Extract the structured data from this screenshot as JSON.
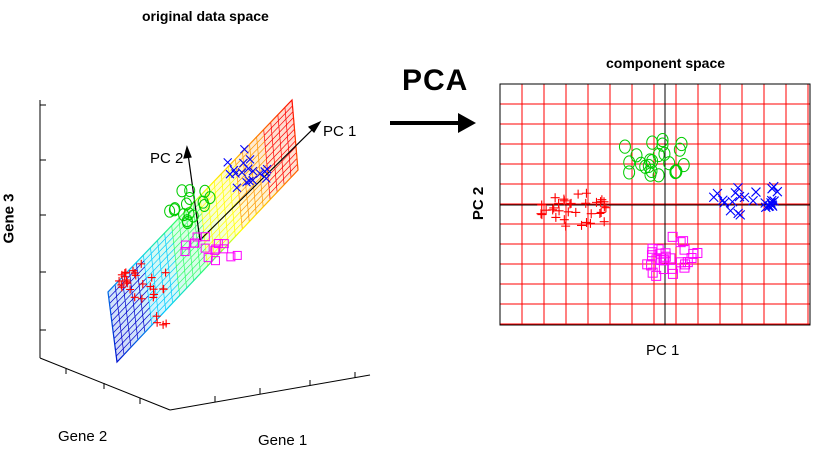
{
  "left_panel": {
    "title": "original data space",
    "x_axis_label": "Gene 1",
    "y_axis_label": "Gene 2",
    "z_axis_label": "Gene 3",
    "pc1_label": "PC 1",
    "pc2_label": "PC 2"
  },
  "transform_label": "PCA",
  "right_panel": {
    "title": "component space",
    "x_axis_label": "PC 1",
    "y_axis_label": "PC 2"
  },
  "clusters": [
    {
      "marker": "plus",
      "color": "#ff0000"
    },
    {
      "marker": "circle",
      "color": "#00cc00"
    },
    {
      "marker": "square",
      "color": "#ff00ff"
    },
    {
      "marker": "cross",
      "color": "#0000ff"
    }
  ],
  "colors": {
    "grid_right": "#ff0000",
    "axes": "#000000",
    "plane_gradient": [
      "#0000cc",
      "#00ccff",
      "#33ff66",
      "#ffff00",
      "#ff9900",
      "#ff0000"
    ]
  }
}
